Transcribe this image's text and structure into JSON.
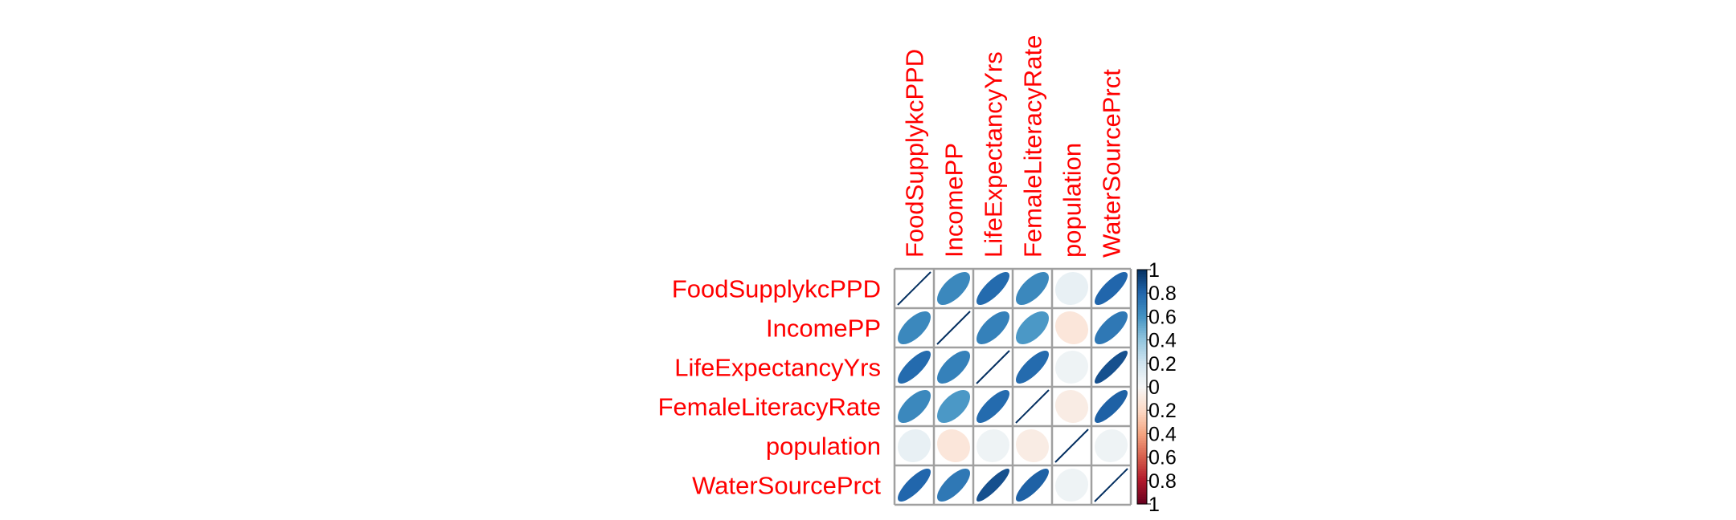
{
  "chart_data": {
    "type": "heatmap",
    "method": "ellipse",
    "variables": [
      "FoodSupplykcPPD",
      "IncomePP",
      "LifeExpectancyYrs",
      "FemaleLiteracyRate",
      "population",
      "WaterSourcePrct"
    ],
    "matrix": [
      [
        1.0,
        0.65,
        0.78,
        0.65,
        0.08,
        0.8
      ],
      [
        0.65,
        1.0,
        0.68,
        0.58,
        -0.12,
        0.72
      ],
      [
        0.78,
        0.68,
        1.0,
        0.78,
        0.05,
        0.88
      ],
      [
        0.65,
        0.58,
        0.78,
        1.0,
        -0.08,
        0.82
      ],
      [
        0.08,
        -0.12,
        0.05,
        -0.08,
        1.0,
        0.05
      ],
      [
        0.8,
        0.72,
        0.88,
        0.82,
        0.05,
        1.0
      ]
    ],
    "colorbar": {
      "ticks": [
        "1",
        "0.8",
        "0.6",
        "0.4",
        "0.2",
        "0",
        "0.2",
        "0.4",
        "0.6",
        "0.8",
        "1"
      ],
      "range": [
        -1,
        1
      ]
    },
    "colors": {
      "positive_max": "#053061",
      "positive": "#4393c3",
      "neutral": "#f7f7f7",
      "negative": "#d6604d",
      "negative_max": "#67001f",
      "labels": "#ff0000",
      "grid": "#a0a0a0"
    }
  }
}
